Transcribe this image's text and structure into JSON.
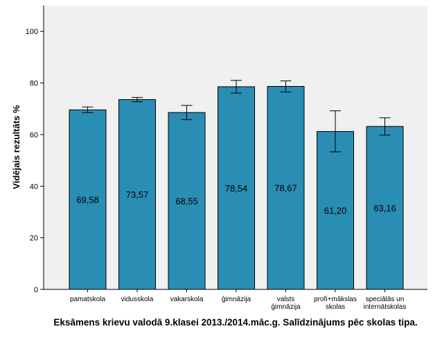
{
  "chart_data": {
    "type": "bar",
    "title": "",
    "xlabel": "",
    "ylabel": "Vidējais rezultāts %",
    "caption": "Eksāmens krievu valodā 9.klasei 2013./2014.māc.g. Salīdzinājums pēc skolas tipa.",
    "ylim": [
      0,
      110
    ],
    "yticks": [
      0,
      20,
      40,
      60,
      80,
      100
    ],
    "grid": false,
    "legend": "none",
    "bar_color": "#2a8db3",
    "plot_background": "#f0f0f0",
    "categories": [
      [
        "pamatskola"
      ],
      [
        "vidusskola"
      ],
      [
        "vakarskola"
      ],
      [
        "ģimnāzija"
      ],
      [
        "valsts",
        "ģimnāzija"
      ],
      [
        "profi+mākslas",
        "skolas"
      ],
      [
        "speciālās un",
        "internātskolas"
      ]
    ],
    "values": [
      69.58,
      73.57,
      68.55,
      78.54,
      78.67,
      61.2,
      63.16
    ],
    "value_labels": [
      "69,58",
      "73,57",
      "68,55",
      "78,54",
      "78,67",
      "61,20",
      "63,16"
    ],
    "error_low": [
      68.5,
      72.7,
      65.8,
      76.1,
      76.5,
      53.3,
      59.8
    ],
    "error_high": [
      70.7,
      74.4,
      71.3,
      81.0,
      80.8,
      69.2,
      66.5
    ]
  }
}
